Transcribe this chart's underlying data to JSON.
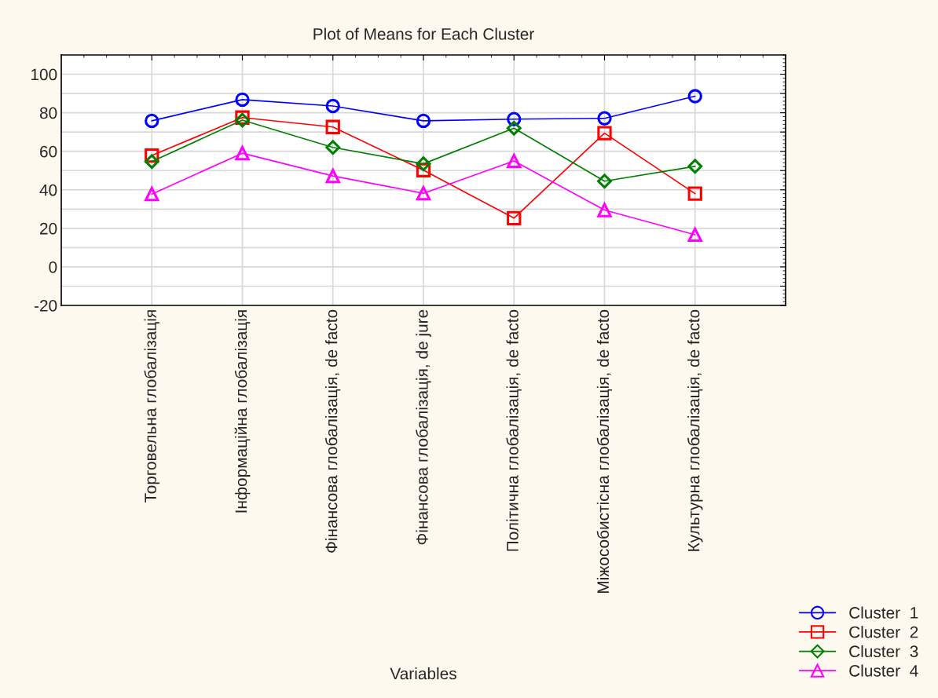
{
  "chart_data": {
    "type": "line",
    "title": "Plot of Means for Each Cluster",
    "xlabel": "Variables",
    "categories": [
      "Торговельна глобалізація",
      "Інформаційна глобалізація",
      "Фінансова глобалізація, de facto",
      "Фінансова глобалізація, de jure",
      "Політична глобалізація, de facto",
      "Міжособистісна глобалізація, de facto",
      "Культурна глобалізація, de facto"
    ],
    "series": [
      {
        "name": "Cluster  1",
        "color": "#0000ff",
        "marker": "circle",
        "values": [
          75.8,
          86.8,
          83.5,
          75.8,
          76.7,
          77.1,
          88.6
        ]
      },
      {
        "name": "Cluster  2",
        "color": "#ff0000",
        "marker": "square",
        "values": [
          57.8,
          77.5,
          72.6,
          50.2,
          25.3,
          69.4,
          38.0
        ]
      },
      {
        "name": "Cluster  3",
        "color": "#008000",
        "marker": "diamond",
        "values": [
          54.7,
          76.2,
          62.0,
          53.5,
          72.0,
          44.5,
          52.2
        ]
      },
      {
        "name": "Cluster  4",
        "color": "#ff00ff",
        "marker": "triangle",
        "values": [
          37.8,
          59.0,
          47.2,
          38.2,
          55.0,
          29.5,
          16.7
        ]
      }
    ],
    "ylim": [
      -20,
      110
    ],
    "yticks": [
      -20,
      {
        "value": -10,
        "label": null
      },
      0,
      {
        "value": 10,
        "label": null
      },
      20,
      {
        "value": 30,
        "label": null
      },
      40,
      {
        "value": 50,
        "label": null
      },
      60,
      {
        "value": 70,
        "label": null
      },
      80,
      {
        "value": 90,
        "label": null
      },
      100
    ],
    "grid": true,
    "legend": "bottom right",
    "line_style": "solid"
  }
}
